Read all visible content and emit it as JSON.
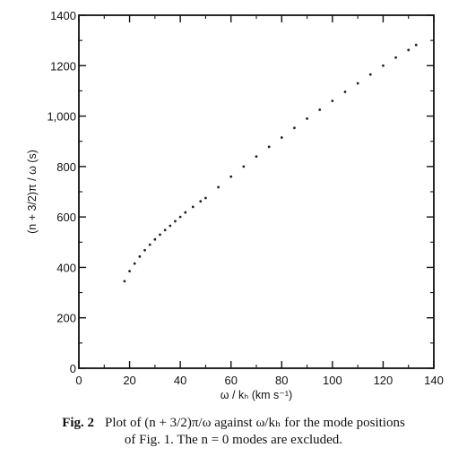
{
  "chart_data": {
    "type": "scatter",
    "title": "",
    "xlabel": "ω / kₕ (km s⁻¹)",
    "ylabel": "(n + 3/2)π / ω (s)",
    "xlim": [
      0,
      140
    ],
    "ylim": [
      0,
      1400
    ],
    "x_ticks": [
      0,
      20,
      40,
      60,
      80,
      100,
      120,
      140
    ],
    "x_tick_labels": [
      "0",
      "20",
      "40",
      "60",
      "80",
      "100",
      "120",
      "140"
    ],
    "y_ticks": [
      0,
      200,
      400,
      600,
      800,
      1000,
      1200,
      1400
    ],
    "y_tick_labels": [
      "0",
      "200",
      "400",
      "600",
      "800",
      "1,000",
      "1200",
      "1400"
    ],
    "grid": false,
    "legend": "none",
    "series": [
      {
        "x": [
          18,
          20,
          22,
          24,
          26,
          28,
          30,
          32,
          34,
          36,
          38,
          40,
          42,
          45,
          48,
          50,
          55,
          60,
          65,
          70,
          75,
          80,
          85,
          90,
          95,
          100,
          105,
          110,
          115,
          120,
          125,
          130,
          133
        ],
        "values": [
          345,
          385,
          415,
          443,
          468,
          490,
          511,
          530,
          548,
          565,
          583,
          600,
          618,
          640,
          662,
          675,
          718,
          760,
          800,
          840,
          878,
          915,
          953,
          990,
          1025,
          1060,
          1096,
          1130,
          1165,
          1200,
          1232,
          1262,
          1282
        ]
      }
    ],
    "marker_color": "#222222"
  },
  "caption": {
    "label": "Fig. 2",
    "text_line1": "Plot of (n + 3/2)π/ω against ω/kₕ for the mode positions",
    "text_line2": "of Fig. 1. The n = 0 modes are excluded."
  }
}
